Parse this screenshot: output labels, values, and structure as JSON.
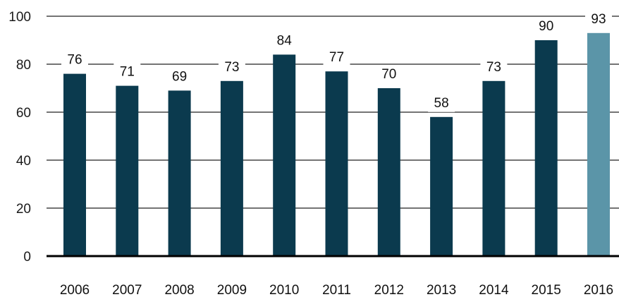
{
  "chart_data": {
    "type": "bar",
    "categories": [
      "2006",
      "2007",
      "2008",
      "2009",
      "2010",
      "2011",
      "2012",
      "2013",
      "2014",
      "2015",
      "2016"
    ],
    "values": [
      76,
      71,
      69,
      73,
      84,
      77,
      70,
      58,
      73,
      90,
      93
    ],
    "data_labels": [
      "76",
      "71",
      "69",
      "73",
      "84",
      "77",
      "70",
      "58",
      "73",
      "90",
      "93"
    ],
    "yticks": [
      0,
      20,
      40,
      60,
      80,
      100
    ],
    "ytick_labels": [
      "0",
      "20",
      "40",
      "60",
      "80",
      "100"
    ],
    "ylim": [
      0,
      100
    ],
    "grid": true,
    "legend": "none",
    "colors": {
      "bar": "#0b3a4e",
      "highlight_bar": "#5b95a8",
      "gridline": "#222222",
      "baseline": "#000000"
    },
    "highlight_index": 10
  }
}
